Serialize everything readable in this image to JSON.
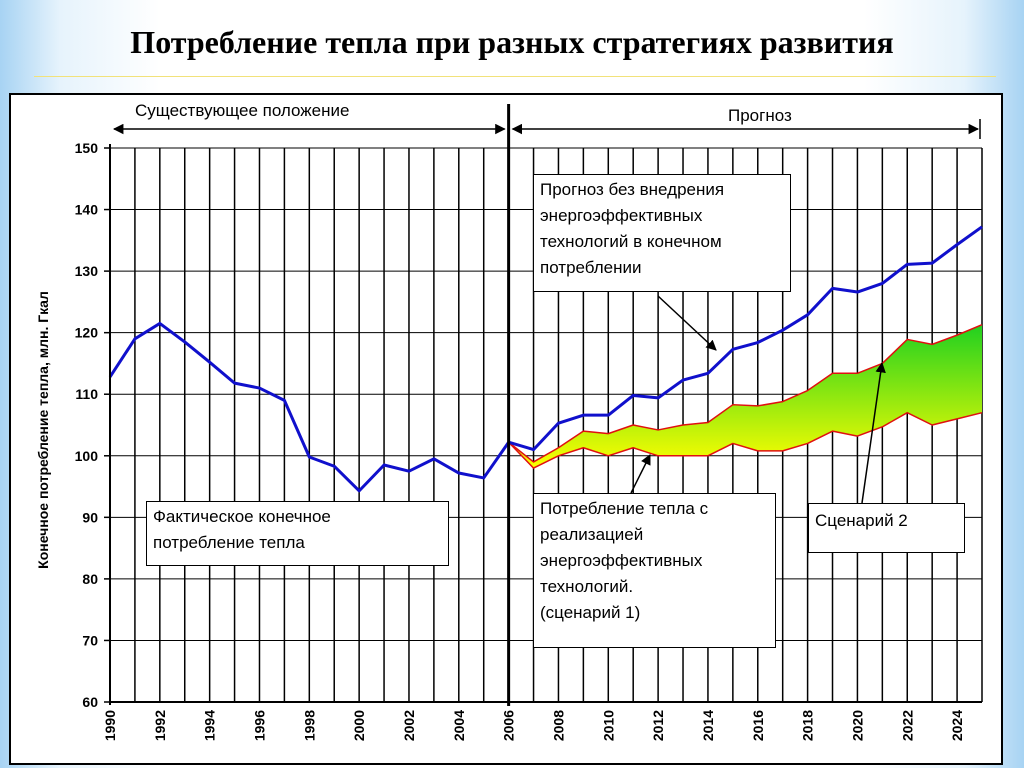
{
  "slide": {
    "title": "Потребление тепла при разных стратегиях развития"
  },
  "annotations": {
    "period_existing": "Существующее положение",
    "period_forecast": "Прогноз",
    "note_forecast_no_eff": "Прогноз без внедрения\nэнергоэффективных\nтехнологий в конечном\nпотреблении",
    "note_actual": "Фактическое конечное\nпотребление тепла",
    "note_scenario1": "Потребление тепла с\nреализацией\nэнергоэффективных\nтехнологий.\n (сценарий 1)",
    "note_scenario2": "Сценарий 2"
  },
  "colors": {
    "main_line": "#1010cc",
    "scenario_line": "#e01010",
    "fill_top": "#20d020",
    "fill_bottom": "#ffff00",
    "grid": "#000000"
  },
  "chart_data": {
    "type": "line",
    "ylabel": "Конечное потребление тепла, млн. Гкал",
    "xlabel": "",
    "ylim": [
      60,
      150
    ],
    "yticks": [
      60,
      70,
      80,
      90,
      100,
      110,
      120,
      130,
      140,
      150
    ],
    "xlim": [
      1990,
      2025
    ],
    "xticks": [
      1990,
      1992,
      1994,
      1996,
      1998,
      2000,
      2002,
      2004,
      2006,
      2008,
      2010,
      2012,
      2014,
      2016,
      2018,
      2020,
      2022,
      2024
    ],
    "divider_year": 2006,
    "grid": true,
    "series": [
      {
        "name": "Фактическое конечное потребление тепла",
        "x": [
          1990,
          1991,
          1992,
          1993,
          1994,
          1995,
          1996,
          1997,
          1998,
          1999,
          2000,
          2001,
          2002,
          2003,
          2004,
          2005,
          2006
        ],
        "values": [
          112.8,
          119.0,
          121.5,
          118.5,
          115.2,
          111.8,
          111.0,
          109.0,
          99.8,
          98.3,
          94.3,
          98.5,
          97.5,
          99.5,
          97.2,
          96.4,
          102.2
        ]
      },
      {
        "name": "Прогноз без внедрения энергоэффективных технологий в конечном потреблении",
        "x": [
          2006,
          2007,
          2008,
          2009,
          2010,
          2011,
          2012,
          2013,
          2014,
          2015,
          2016,
          2017,
          2018,
          2019,
          2020,
          2021,
          2022,
          2023,
          2024,
          2025
        ],
        "values": [
          102.2,
          101.0,
          105.3,
          106.6,
          106.6,
          109.8,
          109.4,
          112.3,
          113.4,
          117.3,
          118.4,
          120.4,
          122.9,
          127.2,
          126.6,
          128.0,
          131.1,
          131.3,
          134.3,
          137.2
        ]
      },
      {
        "name": "Потребление тепла с реализацией энергоэффективных технологий. (сценарий 1)",
        "x": [
          2006,
          2007,
          2008,
          2009,
          2010,
          2011,
          2012,
          2013,
          2014,
          2015,
          2016,
          2017,
          2018,
          2019,
          2020,
          2021,
          2022,
          2023,
          2024,
          2025
        ],
        "values": [
          102.2,
          98.0,
          100.0,
          101.3,
          100.0,
          101.3,
          100.0,
          100.0,
          100.0,
          102.0,
          100.8,
          100.8,
          102.0,
          104.0,
          103.2,
          104.7,
          107.0,
          105.0,
          106.0,
          107.0
        ]
      },
      {
        "name": "Сценарий 2",
        "x": [
          2006,
          2007,
          2008,
          2009,
          2010,
          2011,
          2012,
          2013,
          2014,
          2015,
          2016,
          2017,
          2018,
          2019,
          2020,
          2021,
          2022,
          2023,
          2024,
          2025
        ],
        "values": [
          102.2,
          99.0,
          101.3,
          104.0,
          103.6,
          105.0,
          104.2,
          105.0,
          105.4,
          108.3,
          108.1,
          108.8,
          110.6,
          113.4,
          113.4,
          115.0,
          118.9,
          118.1,
          119.6,
          121.3
        ]
      }
    ]
  }
}
